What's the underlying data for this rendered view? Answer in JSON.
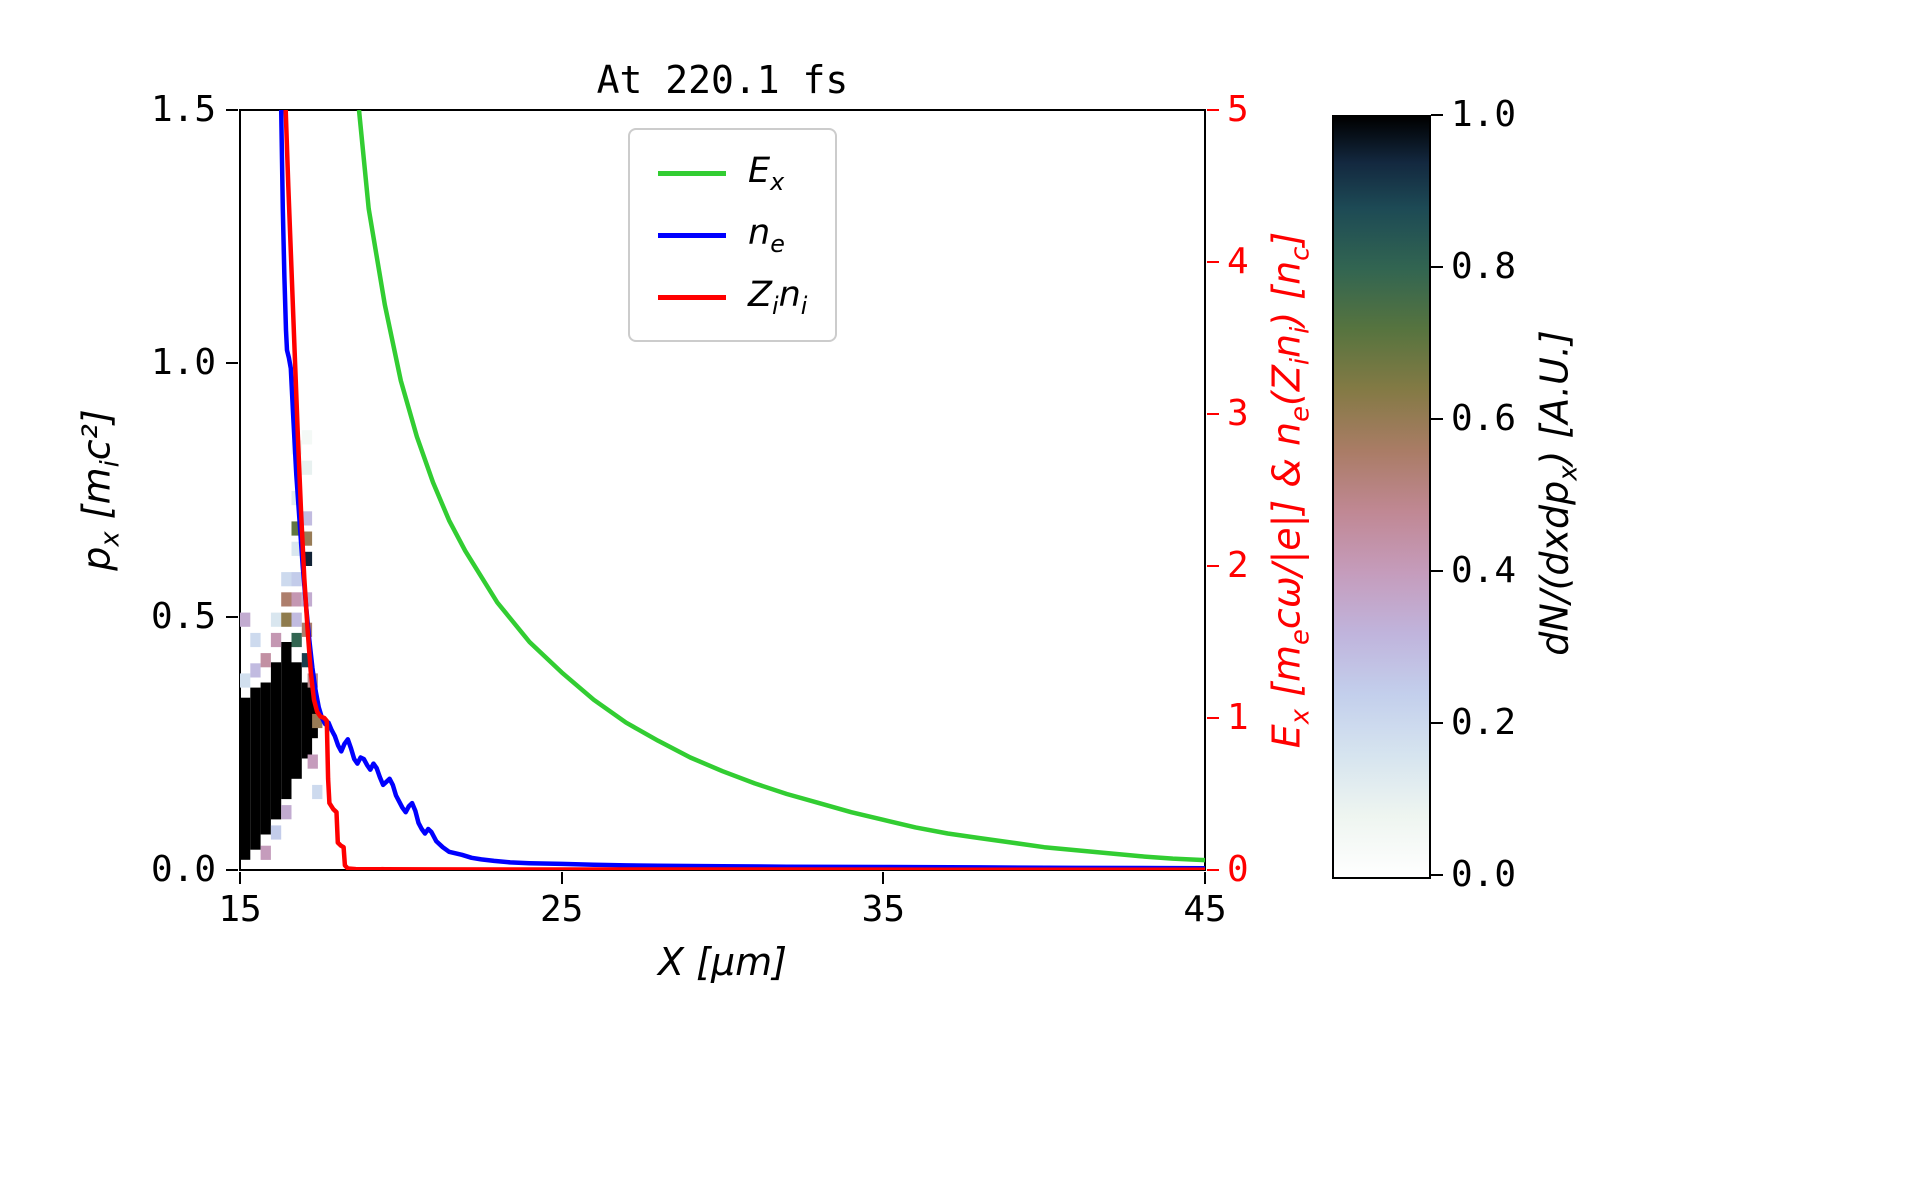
{
  "display": {
    "title": "At 220.1 fs",
    "xlabel": "X [μm]",
    "ylabel_left": "p~x~ [m~i~c²]",
    "ylabel_right": "E~x~ [m~e~cω/|e|] & n~e~(Z~i~n~i~) [n~c~]",
    "colorbar_label": "dN/(dxdp~x~) [A.U.]",
    "x_tick_labels": [
      "15",
      "25",
      "35",
      "45"
    ],
    "y_left_tick_labels": [
      "0.0",
      "0.5",
      "1.0",
      "1.5"
    ],
    "y_right_tick_labels": [
      "0",
      "1",
      "2",
      "3",
      "4",
      "5"
    ],
    "colorbar_tick_labels": [
      "0.0",
      "0.2",
      "0.4",
      "0.6",
      "0.8",
      "1.0"
    ],
    "legend": [
      {
        "label": "E~x~"
      },
      {
        "label": "n~e~"
      },
      {
        "label": "Z~i~n~i~"
      }
    ],
    "colors": {
      "axis": "#000000",
      "right_axis": "#ff0000"
    }
  },
  "chart_data": {
    "type": "line+heatmap",
    "title": "At 220.1 fs",
    "grid": false,
    "legend_position": "upper center inside",
    "x_axis": {
      "label": "X [um]",
      "range": [
        15,
        45
      ],
      "ticks": [
        15,
        25,
        35,
        45
      ]
    },
    "y_left_axis": {
      "label": "p_x [m_i c^2]",
      "range": [
        0,
        1.5
      ],
      "ticks": [
        0,
        0.5,
        1.0,
        1.5
      ]
    },
    "y_right_axis": {
      "label": "E_x [m_e c w/|e|] & n_e(Z_i n_i) [n_c]",
      "range": [
        0,
        5
      ],
      "ticks": [
        0,
        1,
        2,
        3,
        4,
        5
      ],
      "color": "#ff0000"
    },
    "series": [
      {
        "id": "ex",
        "name": "E_x",
        "axis": "right",
        "color": "#32cd32",
        "x": [
          18.7,
          19.0,
          19.5,
          20.0,
          20.5,
          21.0,
          21.5,
          22.0,
          23.0,
          24.0,
          25.0,
          26.0,
          27.0,
          28.0,
          29.0,
          30.0,
          31.0,
          32.0,
          33.0,
          34.0,
          35.0,
          36.0,
          37.0,
          38.0,
          39.0,
          40.0,
          41.0,
          42.0,
          43.0,
          44.0,
          45.0
        ],
        "y": [
          5.0,
          4.35,
          3.72,
          3.22,
          2.85,
          2.55,
          2.3,
          2.1,
          1.76,
          1.5,
          1.3,
          1.12,
          0.97,
          0.85,
          0.74,
          0.65,
          0.57,
          0.5,
          0.44,
          0.38,
          0.33,
          0.28,
          0.24,
          0.21,
          0.18,
          0.15,
          0.13,
          0.11,
          0.09,
          0.075,
          0.065
        ]
      },
      {
        "id": "ne",
        "name": "n_e",
        "axis": "right",
        "color": "#0000ff",
        "x": [
          16.28,
          16.33,
          16.38,
          16.43,
          16.46,
          16.52,
          16.58,
          16.65,
          16.75,
          16.85,
          16.95,
          17.05,
          17.15,
          17.25,
          17.35,
          17.45,
          17.55,
          17.65,
          17.75,
          17.85,
          17.95,
          18.05,
          18.15,
          18.25,
          18.35,
          18.45,
          18.55,
          18.65,
          18.75,
          18.85,
          18.95,
          19.05,
          19.15,
          19.25,
          19.35,
          19.45,
          19.55,
          19.65,
          19.75,
          19.85,
          19.95,
          20.05,
          20.15,
          20.25,
          20.35,
          20.45,
          20.55,
          20.65,
          20.75,
          20.85,
          20.95,
          21.1,
          21.3,
          21.5,
          21.7,
          21.9,
          22.2,
          22.5,
          22.9,
          23.4,
          24.0,
          25.0,
          26.0,
          27.0,
          28.0,
          30.0,
          32.0,
          35.0,
          38.0,
          41.0,
          45.0
        ],
        "y": [
          5.0,
          4.35,
          3.9,
          3.55,
          3.42,
          3.37,
          3.3,
          3.0,
          2.6,
          2.3,
          2.0,
          1.75,
          1.52,
          1.33,
          1.18,
          1.07,
          1.0,
          0.96,
          0.97,
          0.92,
          0.88,
          0.82,
          0.78,
          0.83,
          0.86,
          0.8,
          0.73,
          0.7,
          0.74,
          0.73,
          0.69,
          0.66,
          0.7,
          0.67,
          0.61,
          0.56,
          0.58,
          0.6,
          0.56,
          0.49,
          0.45,
          0.41,
          0.38,
          0.42,
          0.44,
          0.39,
          0.31,
          0.27,
          0.24,
          0.27,
          0.25,
          0.19,
          0.15,
          0.12,
          0.11,
          0.1,
          0.08,
          0.07,
          0.06,
          0.05,
          0.045,
          0.04,
          0.035,
          0.03,
          0.028,
          0.025,
          0.022,
          0.02,
          0.017,
          0.014,
          0.012
        ]
      },
      {
        "id": "zini",
        "name": "Z_i n_i",
        "axis": "right",
        "color": "#ff0000",
        "x": [
          16.42,
          16.5,
          16.6,
          16.7,
          16.8,
          16.9,
          17.0,
          17.1,
          17.2,
          17.3,
          17.4,
          17.5,
          17.62,
          17.7,
          17.74,
          17.78,
          17.9,
          18.0,
          18.04,
          18.14,
          18.22,
          18.26,
          18.35,
          18.6,
          19.5,
          21.0,
          25.0,
          30.0,
          37.0,
          45.0
        ],
        "y": [
          5.0,
          4.5,
          3.95,
          3.4,
          2.85,
          2.35,
          1.92,
          1.58,
          1.3,
          1.12,
          1.04,
          1.01,
          1.0,
          0.98,
          0.6,
          0.44,
          0.4,
          0.38,
          0.18,
          0.16,
          0.15,
          0.03,
          0.01,
          0.006,
          0.005,
          0.004,
          0.003,
          0.003,
          0.002,
          0.002
        ]
      }
    ],
    "heatmap": {
      "label": "dN/(dxdp_x) [A.U.]",
      "value_range": [
        0,
        1
      ],
      "colormap": "cubehelix_r (approx)",
      "colormap_stops": [
        [
          0.0,
          "#ffffff"
        ],
        [
          0.08,
          "#eef5f0"
        ],
        [
          0.16,
          "#d6e4ef"
        ],
        [
          0.24,
          "#c3cfec"
        ],
        [
          0.32,
          "#c0b4dc"
        ],
        [
          0.4,
          "#c59cbc"
        ],
        [
          0.48,
          "#c08894"
        ],
        [
          0.56,
          "#aa7c66"
        ],
        [
          0.64,
          "#847a45"
        ],
        [
          0.72,
          "#57743f"
        ],
        [
          0.8,
          "#326551"
        ],
        [
          0.88,
          "#1d4a55"
        ],
        [
          0.94,
          "#13283f"
        ],
        [
          1.0,
          "#000000"
        ]
      ],
      "cell_size": {
        "dx": 0.32,
        "dp": 0.028
      },
      "columns": [
        {
          "x": 15.0,
          "p0": 0.02,
          "p1": 0.34,
          "v": 1.0
        },
        {
          "x": 15.32,
          "p0": 0.04,
          "p1": 0.36,
          "v": 1.0
        },
        {
          "x": 15.64,
          "p0": 0.07,
          "p1": 0.37,
          "v": 1.0
        },
        {
          "x": 15.96,
          "p0": 0.1,
          "p1": 0.41,
          "v": 1.0
        },
        {
          "x": 16.28,
          "p0": 0.14,
          "p1": 0.45,
          "v": 1.0
        },
        {
          "x": 16.6,
          "p0": 0.18,
          "p1": 0.41,
          "v": 1.0
        },
        {
          "x": 16.92,
          "p0": 0.22,
          "p1": 0.37,
          "v": 1.0
        },
        {
          "x": 17.1,
          "p0": 0.26,
          "p1": 0.34,
          "v": 1.0
        }
      ],
      "cells": [
        {
          "x": 15.0,
          "p": 0.36,
          "v": 0.18
        },
        {
          "x": 15.0,
          "p": 0.48,
          "v": 0.35
        },
        {
          "x": 15.32,
          "p": 0.38,
          "v": 0.3
        },
        {
          "x": 15.32,
          "p": 0.44,
          "v": 0.2
        },
        {
          "x": 15.64,
          "p": 0.4,
          "v": 0.45
        },
        {
          "x": 15.64,
          "p": 0.02,
          "v": 0.4
        },
        {
          "x": 15.96,
          "p": 0.44,
          "v": 0.42
        },
        {
          "x": 15.96,
          "p": 0.48,
          "v": 0.15
        },
        {
          "x": 15.96,
          "p": 0.06,
          "v": 0.25
        },
        {
          "x": 16.28,
          "p": 0.48,
          "v": 0.62
        },
        {
          "x": 16.28,
          "p": 0.52,
          "v": 0.55
        },
        {
          "x": 16.28,
          "p": 0.56,
          "v": 0.2
        },
        {
          "x": 16.28,
          "p": 0.1,
          "v": 0.35
        },
        {
          "x": 16.6,
          "p": 0.44,
          "v": 0.8
        },
        {
          "x": 16.6,
          "p": 0.48,
          "v": 0.3
        },
        {
          "x": 16.6,
          "p": 0.52,
          "v": 0.42
        },
        {
          "x": 16.6,
          "p": 0.56,
          "v": 0.25
        },
        {
          "x": 16.6,
          "p": 0.62,
          "v": 0.15
        },
        {
          "x": 16.6,
          "p": 0.66,
          "v": 0.7
        },
        {
          "x": 16.6,
          "p": 0.72,
          "v": 0.12
        },
        {
          "x": 16.6,
          "p": 0.82,
          "v": 0.08
        },
        {
          "x": 16.92,
          "p": 0.4,
          "v": 0.9
        },
        {
          "x": 16.92,
          "p": 0.46,
          "v": 0.55
        },
        {
          "x": 16.92,
          "p": 0.52,
          "v": 0.35
        },
        {
          "x": 16.92,
          "p": 0.6,
          "v": 0.95
        },
        {
          "x": 16.92,
          "p": 0.64,
          "v": 0.6
        },
        {
          "x": 16.92,
          "p": 0.68,
          "v": 0.3
        },
        {
          "x": 16.92,
          "p": 0.78,
          "v": 0.1
        },
        {
          "x": 16.92,
          "p": 0.84,
          "v": 0.05
        },
        {
          "x": 17.1,
          "p": 0.2,
          "v": 0.4
        },
        {
          "x": 17.1,
          "p": 0.36,
          "v": 0.5
        },
        {
          "x": 17.24,
          "p": 0.28,
          "v": 0.6
        },
        {
          "x": 17.24,
          "p": 0.14,
          "v": 0.2
        }
      ]
    }
  }
}
